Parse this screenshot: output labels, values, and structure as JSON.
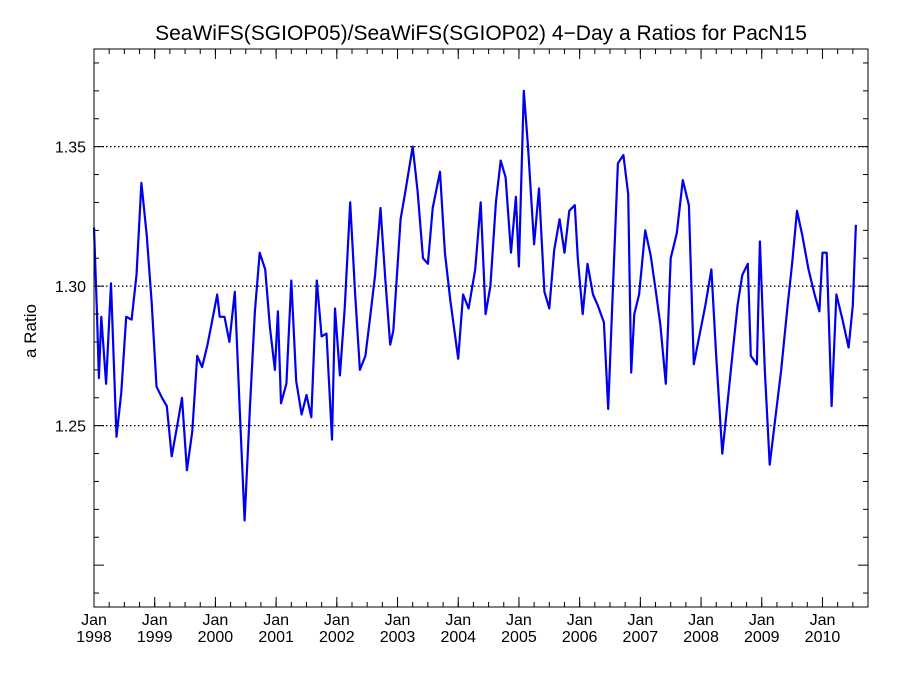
{
  "chart_data": {
    "type": "line",
    "title": "SeaWiFS(SGIOP05)/SeaWiFS(SGIOP02) 4−Day a Ratios for PacN15",
    "xlabel": "",
    "ylabel": "a Ratio",
    "xlim": [
      1998.0,
      2010.75
    ],
    "ylim": [
      1.185,
      1.385
    ],
    "grid": "dotted horizontal at labeled y ticks",
    "yticks_major": [
      1.25,
      1.3,
      1.35
    ],
    "ytick_labels": [
      "1.25",
      "1.30",
      "1.35"
    ],
    "xticks": [
      {
        "x": 1998,
        "month": "Jan",
        "year": "1998"
      },
      {
        "x": 1999,
        "month": "Jan",
        "year": "1999"
      },
      {
        "x": 2000,
        "month": "Jan",
        "year": "2000"
      },
      {
        "x": 2001,
        "month": "Jan",
        "year": "2001"
      },
      {
        "x": 2002,
        "month": "Jan",
        "year": "2002"
      },
      {
        "x": 2003,
        "month": "Jan",
        "year": "2003"
      },
      {
        "x": 2004,
        "month": "Jan",
        "year": "2004"
      },
      {
        "x": 2005,
        "month": "Jan",
        "year": "2005"
      },
      {
        "x": 2006,
        "month": "Jan",
        "year": "2006"
      },
      {
        "x": 2007,
        "month": "Jan",
        "year": "2007"
      },
      {
        "x": 2008,
        "month": "Jan",
        "year": "2008"
      },
      {
        "x": 2009,
        "month": "Jan",
        "year": "2009"
      },
      {
        "x": 2010,
        "month": "Jan",
        "year": "2010"
      }
    ],
    "series": [
      {
        "color": "#0000ee",
        "points": [
          [
            1998.0,
            1.321
          ],
          [
            1998.05,
            1.29
          ],
          [
            1998.08,
            1.267
          ],
          [
            1998.12,
            1.289
          ],
          [
            1998.2,
            1.265
          ],
          [
            1998.28,
            1.301
          ],
          [
            1998.37,
            1.246
          ],
          [
            1998.45,
            1.262
          ],
          [
            1998.53,
            1.289
          ],
          [
            1998.62,
            1.288
          ],
          [
            1998.7,
            1.304
          ],
          [
            1998.78,
            1.337
          ],
          [
            1998.87,
            1.318
          ],
          [
            1998.95,
            1.294
          ],
          [
            1999.03,
            1.264
          ],
          [
            1999.12,
            1.26
          ],
          [
            1999.2,
            1.257
          ],
          [
            1999.28,
            1.239
          ],
          [
            1999.37,
            1.25
          ],
          [
            1999.45,
            1.26
          ],
          [
            1999.53,
            1.234
          ],
          [
            1999.62,
            1.248
          ],
          [
            1999.7,
            1.275
          ],
          [
            1999.78,
            1.271
          ],
          [
            1999.87,
            1.279
          ],
          [
            1999.95,
            1.288
          ],
          [
            2000.03,
            1.297
          ],
          [
            2000.07,
            1.289
          ],
          [
            2000.15,
            1.289
          ],
          [
            2000.23,
            1.28
          ],
          [
            2000.32,
            1.298
          ],
          [
            2000.4,
            1.256
          ],
          [
            2000.48,
            1.216
          ],
          [
            2000.57,
            1.257
          ],
          [
            2000.65,
            1.291
          ],
          [
            2000.73,
            1.312
          ],
          [
            2000.82,
            1.306
          ],
          [
            2000.9,
            1.285
          ],
          [
            2000.98,
            1.27
          ],
          [
            2001.03,
            1.291
          ],
          [
            2001.08,
            1.258
          ],
          [
            2001.17,
            1.265
          ],
          [
            2001.25,
            1.302
          ],
          [
            2001.33,
            1.266
          ],
          [
            2001.42,
            1.254
          ],
          [
            2001.5,
            1.261
          ],
          [
            2001.58,
            1.253
          ],
          [
            2001.67,
            1.302
          ],
          [
            2001.75,
            1.282
          ],
          [
            2001.83,
            1.283
          ],
          [
            2001.92,
            1.245
          ],
          [
            2001.97,
            1.292
          ],
          [
            2002.05,
            1.268
          ],
          [
            2002.13,
            1.292
          ],
          [
            2002.22,
            1.33
          ],
          [
            2002.3,
            1.298
          ],
          [
            2002.38,
            1.27
          ],
          [
            2002.47,
            1.275
          ],
          [
            2002.55,
            1.289
          ],
          [
            2002.63,
            1.304
          ],
          [
            2002.72,
            1.328
          ],
          [
            2002.8,
            1.302
          ],
          [
            2002.88,
            1.279
          ],
          [
            2002.93,
            1.284
          ],
          [
            2003.05,
            1.324
          ],
          [
            2003.13,
            1.334
          ],
          [
            2003.25,
            1.35
          ],
          [
            2003.33,
            1.334
          ],
          [
            2003.42,
            1.31
          ],
          [
            2003.5,
            1.308
          ],
          [
            2003.58,
            1.328
          ],
          [
            2003.7,
            1.341
          ],
          [
            2003.78,
            1.312
          ],
          [
            2003.87,
            1.295
          ],
          [
            2004.0,
            1.274
          ],
          [
            2004.08,
            1.297
          ],
          [
            2004.17,
            1.292
          ],
          [
            2004.28,
            1.306
          ],
          [
            2004.37,
            1.33
          ],
          [
            2004.45,
            1.29
          ],
          [
            2004.53,
            1.3
          ],
          [
            2004.62,
            1.33
          ],
          [
            2004.7,
            1.345
          ],
          [
            2004.78,
            1.339
          ],
          [
            2004.87,
            1.312
          ],
          [
            2004.95,
            1.332
          ],
          [
            2005.0,
            1.307
          ],
          [
            2005.08,
            1.37
          ],
          [
            2005.15,
            1.35
          ],
          [
            2005.25,
            1.315
          ],
          [
            2005.33,
            1.335
          ],
          [
            2005.42,
            1.298
          ],
          [
            2005.5,
            1.292
          ],
          [
            2005.58,
            1.313
          ],
          [
            2005.67,
            1.324
          ],
          [
            2005.75,
            1.312
          ],
          [
            2005.83,
            1.327
          ],
          [
            2005.92,
            1.329
          ],
          [
            2005.97,
            1.31
          ],
          [
            2006.05,
            1.29
          ],
          [
            2006.13,
            1.308
          ],
          [
            2006.22,
            1.297
          ],
          [
            2006.3,
            1.293
          ],
          [
            2006.4,
            1.287
          ],
          [
            2006.47,
            1.256
          ],
          [
            2006.55,
            1.3
          ],
          [
            2006.63,
            1.344
          ],
          [
            2006.72,
            1.347
          ],
          [
            2006.8,
            1.333
          ],
          [
            2006.85,
            1.269
          ],
          [
            2006.9,
            1.29
          ],
          [
            2006.98,
            1.297
          ],
          [
            2007.08,
            1.32
          ],
          [
            2007.17,
            1.311
          ],
          [
            2007.25,
            1.299
          ],
          [
            2007.33,
            1.286
          ],
          [
            2007.42,
            1.265
          ],
          [
            2007.5,
            1.31
          ],
          [
            2007.6,
            1.319
          ],
          [
            2007.7,
            1.338
          ],
          [
            2007.8,
            1.329
          ],
          [
            2007.88,
            1.272
          ],
          [
            2007.98,
            1.283
          ],
          [
            2008.07,
            1.293
          ],
          [
            2008.17,
            1.306
          ],
          [
            2008.25,
            1.275
          ],
          [
            2008.35,
            1.24
          ],
          [
            2008.43,
            1.257
          ],
          [
            2008.52,
            1.276
          ],
          [
            2008.6,
            1.293
          ],
          [
            2008.68,
            1.304
          ],
          [
            2008.77,
            1.308
          ],
          [
            2008.82,
            1.275
          ],
          [
            2008.92,
            1.272
          ],
          [
            2008.97,
            1.316
          ],
          [
            2009.05,
            1.27
          ],
          [
            2009.13,
            1.236
          ],
          [
            2009.22,
            1.252
          ],
          [
            2009.32,
            1.27
          ],
          [
            2009.42,
            1.292
          ],
          [
            2009.5,
            1.308
          ],
          [
            2009.58,
            1.327
          ],
          [
            2009.67,
            1.318
          ],
          [
            2009.77,
            1.306
          ],
          [
            2009.87,
            1.297
          ],
          [
            2009.95,
            1.291
          ],
          [
            2010.0,
            1.312
          ],
          [
            2010.07,
            1.312
          ],
          [
            2010.15,
            1.257
          ],
          [
            2010.23,
            1.297
          ],
          [
            2010.33,
            1.288
          ],
          [
            2010.43,
            1.278
          ],
          [
            2010.5,
            1.293
          ],
          [
            2010.55,
            1.322
          ]
        ]
      }
    ]
  }
}
